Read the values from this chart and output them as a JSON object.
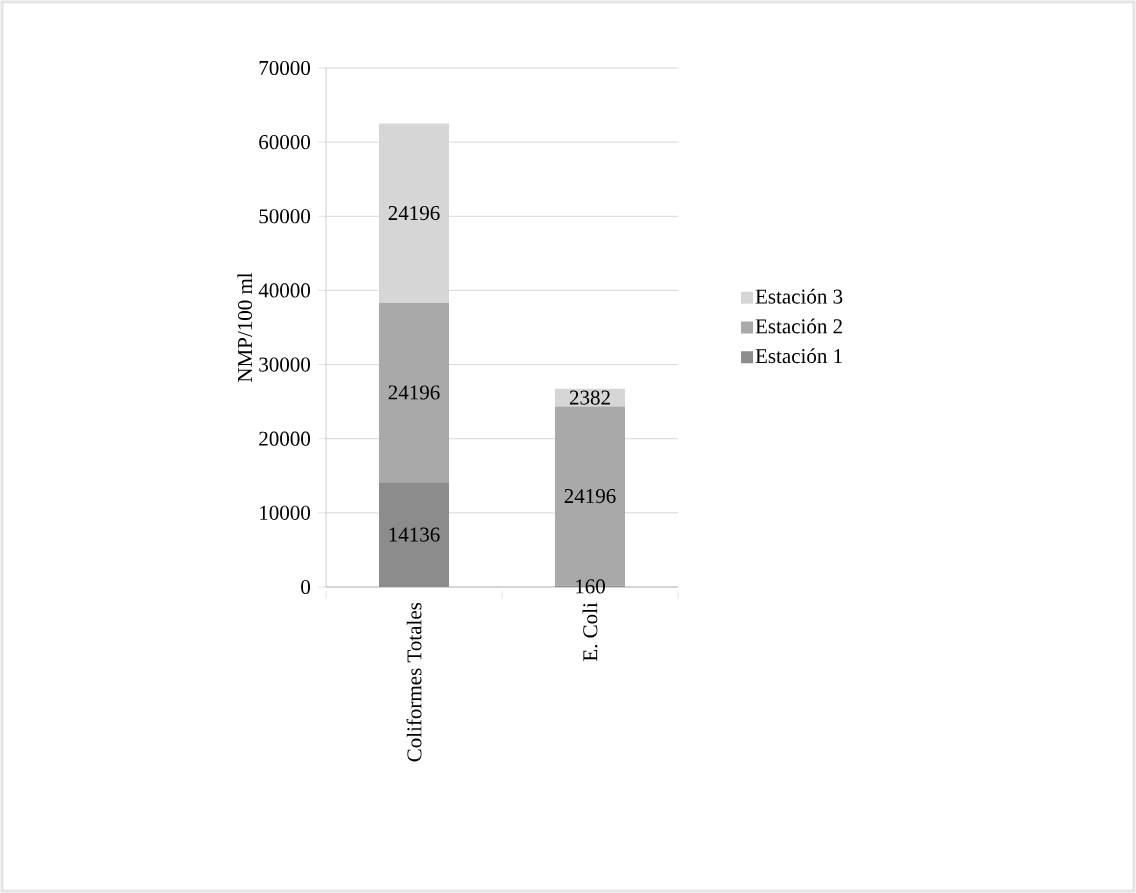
{
  "chart_data": {
    "type": "bar",
    "stacked": true,
    "ylabel": "NMP/100 ml",
    "categories": [
      "Coliformes Totales",
      "E. Coli"
    ],
    "series": [
      {
        "name": "Estación 1",
        "color": "#8c8c8c",
        "values": [
          14136,
          160
        ]
      },
      {
        "name": "Estación 2",
        "color": "#a9a9a9",
        "values": [
          24196,
          24196
        ]
      },
      {
        "name": "Estación 3",
        "color": "#d6d6d6",
        "values": [
          24196,
          2382
        ]
      }
    ],
    "ylim": [
      0,
      70000
    ],
    "yticks": [
      0,
      10000,
      20000,
      30000,
      40000,
      50000,
      60000,
      70000
    ],
    "grid": "y",
    "legend": "right",
    "data_labels": true
  }
}
